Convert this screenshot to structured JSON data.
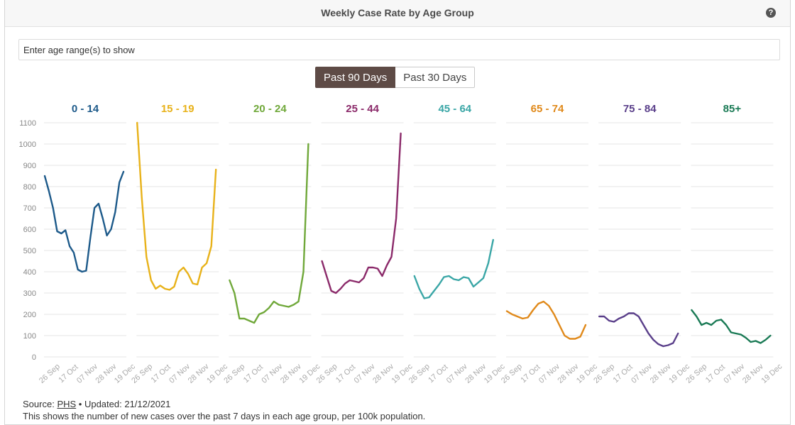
{
  "header": {
    "title": "Weekly Case Rate by Age Group",
    "help_icon": "?"
  },
  "search": {
    "placeholder": "Enter age range(s) to show",
    "value": ""
  },
  "toggle": {
    "active_label": "Past 90 Days",
    "inactive_label": "Past 30 Days"
  },
  "footer": {
    "source_prefix": "Source:",
    "source_link": "PHS",
    "updated": "• Updated: 21/12/2021",
    "description": "This shows the number of new cases over the past 7 days in each age group, per 100k population."
  },
  "chart_data": {
    "type": "line",
    "ylim": [
      0,
      1100
    ],
    "yticks": [
      0,
      100,
      200,
      300,
      400,
      500,
      600,
      700,
      800,
      900,
      1000,
      1100
    ],
    "xticks": [
      "26 Sep",
      "17 Oct",
      "07 Nov",
      "28 Nov",
      "19 Dec"
    ],
    "grid": true,
    "panels": [
      {
        "name": "0 - 14",
        "color": "#1d5a8a",
        "values": [
          850,
          780,
          700,
          590,
          580,
          595,
          520,
          490,
          410,
          400,
          405,
          560,
          700,
          720,
          650,
          570,
          600,
          680,
          820,
          870
        ]
      },
      {
        "name": "15 - 19",
        "color": "#e8b21a",
        "values": [
          1100,
          750,
          470,
          360,
          320,
          335,
          320,
          315,
          330,
          400,
          420,
          390,
          345,
          340,
          420,
          440,
          520,
          880
        ]
      },
      {
        "name": "20 - 24",
        "color": "#70a83a",
        "values": [
          360,
          300,
          180,
          180,
          170,
          160,
          200,
          210,
          230,
          260,
          245,
          240,
          235,
          245,
          260,
          400,
          1000
        ]
      },
      {
        "name": "25 - 44",
        "color": "#8b2a6a",
        "values": [
          450,
          380,
          310,
          300,
          320,
          345,
          360,
          355,
          350,
          370,
          420,
          420,
          415,
          380,
          430,
          470,
          650,
          1050
        ]
      },
      {
        "name": "45 - 64",
        "color": "#3aa6a6",
        "values": [
          380,
          320,
          275,
          280,
          310,
          340,
          375,
          380,
          365,
          360,
          375,
          370,
          330,
          350,
          370,
          440,
          550
        ]
      },
      {
        "name": "65 - 74",
        "color": "#e0891a",
        "values": [
          215,
          200,
          190,
          180,
          185,
          220,
          250,
          260,
          240,
          200,
          150,
          100,
          85,
          85,
          95,
          150
        ]
      },
      {
        "name": "75 - 84",
        "color": "#5a3f8a",
        "values": [
          190,
          190,
          170,
          165,
          180,
          190,
          205,
          205,
          190,
          150,
          110,
          80,
          60,
          50,
          55,
          65,
          110
        ]
      },
      {
        "name": "85+",
        "color": "#1a7a55",
        "values": [
          220,
          190,
          150,
          160,
          150,
          170,
          175,
          150,
          115,
          110,
          105,
          90,
          70,
          75,
          65,
          80,
          100
        ]
      }
    ]
  }
}
